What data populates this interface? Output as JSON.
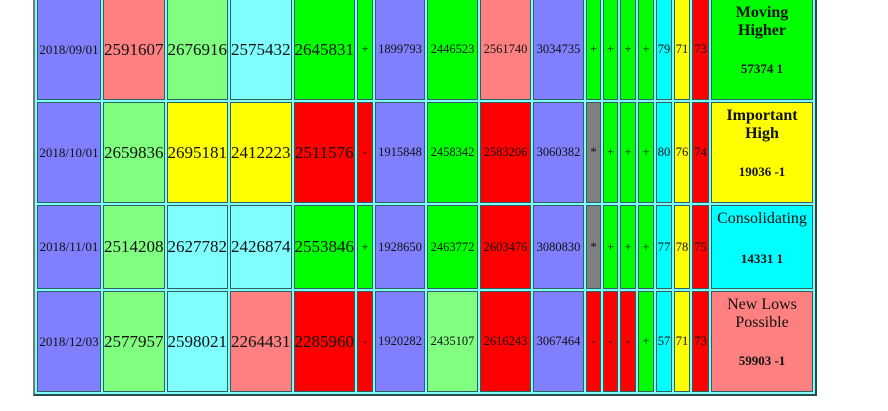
{
  "colors": {
    "P": "#8080ff",
    "R": "#ff8080",
    "LG": "#80ff80",
    "LC": "#80ffff",
    "G": "#00ff00",
    "RED": "#ff0000",
    "Y": "#ffff00",
    "C": "#00ffff",
    "GR": "#808080"
  },
  "rows": [
    {
      "cells": [
        [
          "2018/09/01",
          "P"
        ],
        [
          "2591607",
          "R"
        ],
        [
          "2676916",
          "LG"
        ],
        [
          "2575432",
          "LC"
        ],
        [
          "2645831",
          "G"
        ],
        [
          "+",
          "G"
        ],
        [
          "1899793",
          "P"
        ],
        [
          "2446523",
          "G"
        ],
        [
          "2561740",
          "R"
        ],
        [
          "3034735",
          "P"
        ],
        [
          "+",
          "G"
        ],
        [
          "+",
          "G"
        ],
        [
          "+",
          "G"
        ],
        [
          "+",
          "G"
        ],
        [
          "79",
          "C"
        ],
        [
          "71",
          "Y"
        ],
        [
          "73",
          "RED"
        ]
      ],
      "label": {
        "text": "Moving Higher",
        "value": "57374 1",
        "color": "G",
        "bold": true
      }
    },
    {
      "cells": [
        [
          "2018/10/01",
          "P"
        ],
        [
          "2659836",
          "LG"
        ],
        [
          "2695181",
          "Y"
        ],
        [
          "2412223",
          "Y"
        ],
        [
          "2511576",
          "RED"
        ],
        [
          "-",
          "RED"
        ],
        [
          "1915848",
          "P"
        ],
        [
          "2458342",
          "G"
        ],
        [
          "2583206",
          "RED"
        ],
        [
          "3060382",
          "P"
        ],
        [
          "*",
          "GR"
        ],
        [
          "+",
          "G"
        ],
        [
          "+",
          "G"
        ],
        [
          "+",
          "G"
        ],
        [
          "80",
          "C"
        ],
        [
          "76",
          "Y"
        ],
        [
          "74",
          "RED"
        ]
      ],
      "label": {
        "text": "Important High",
        "value": "19036 -1",
        "color": "Y",
        "bold": true
      }
    },
    {
      "cells": [
        [
          "2018/11/01",
          "P"
        ],
        [
          "2514208",
          "LG"
        ],
        [
          "2627782",
          "LC"
        ],
        [
          "2426874",
          "LC"
        ],
        [
          "2553846",
          "G"
        ],
        [
          "+",
          "G"
        ],
        [
          "1928650",
          "P"
        ],
        [
          "2463772",
          "G"
        ],
        [
          "2603476",
          "RED"
        ],
        [
          "3080830",
          "P"
        ],
        [
          "*",
          "GR"
        ],
        [
          "+",
          "G"
        ],
        [
          "+",
          "G"
        ],
        [
          "+",
          "G"
        ],
        [
          "77",
          "C"
        ],
        [
          "78",
          "Y"
        ],
        [
          "75",
          "RED"
        ]
      ],
      "label": {
        "text": "Consolidating",
        "value": "14331 1",
        "color": "C",
        "bold": false
      }
    },
    {
      "cells": [
        [
          "2018/12/03",
          "P"
        ],
        [
          "2577957",
          "LG"
        ],
        [
          "2598021",
          "LC"
        ],
        [
          "2264431",
          "R"
        ],
        [
          "2285960",
          "RED"
        ],
        [
          "-",
          "RED"
        ],
        [
          "1920282",
          "P"
        ],
        [
          "2435107",
          "LG"
        ],
        [
          "2616243",
          "RED"
        ],
        [
          "3067464",
          "P"
        ],
        [
          "-",
          "RED"
        ],
        [
          "-",
          "RED"
        ],
        [
          "-",
          "RED"
        ],
        [
          "+",
          "G"
        ],
        [
          "57",
          "C"
        ],
        [
          "71",
          "Y"
        ],
        [
          "73",
          "RED"
        ]
      ],
      "label": {
        "text": "New Lows Possible",
        "value": "59903 -1",
        "color": "R",
        "bold": false
      }
    }
  ]
}
